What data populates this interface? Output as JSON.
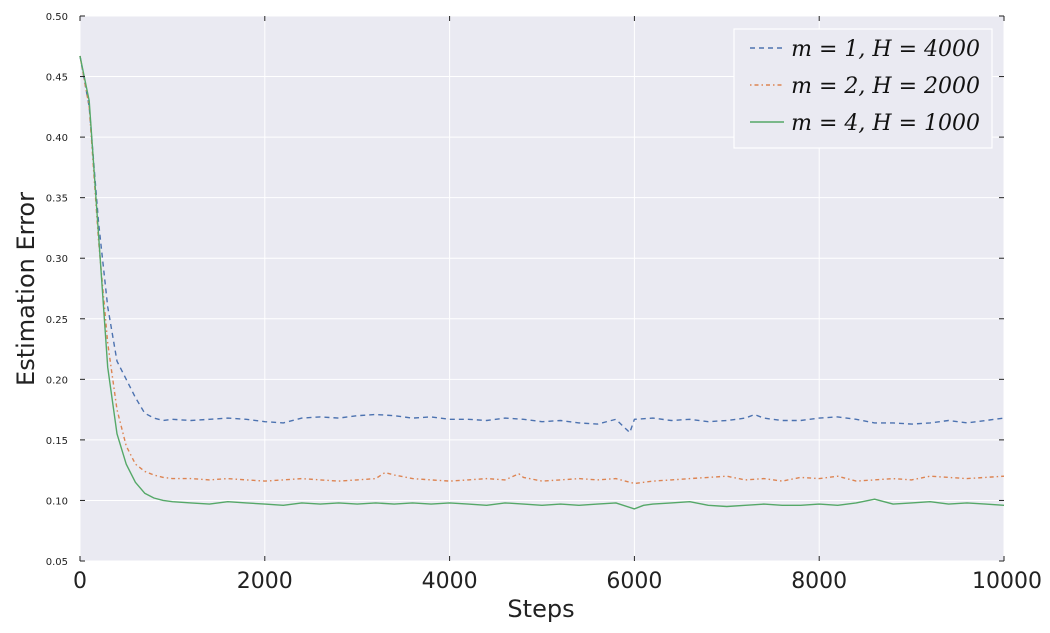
{
  "chart_data": {
    "type": "line",
    "xlabel": "Steps",
    "ylabel": "Estimation Error",
    "xlim": [
      0,
      10000
    ],
    "ylim": [
      0.05,
      0.5
    ],
    "x_ticks": [
      0,
      2000,
      4000,
      6000,
      8000,
      10000
    ],
    "x_tick_labels": [
      "0",
      "2000",
      "4000",
      "6000",
      "8000",
      "10000"
    ],
    "y_ticks": [
      0.05,
      0.1,
      0.15,
      0.2,
      0.25,
      0.3,
      0.35,
      0.4,
      0.45,
      0.5
    ],
    "y_tick_labels": [
      "0.05",
      "0.10",
      "0.15",
      "0.20",
      "0.25",
      "0.30",
      "0.35",
      "0.40",
      "0.45",
      "0.50"
    ],
    "grid": true,
    "legend_position": "top-right",
    "series": [
      {
        "name": "m = 1, H = 4000",
        "color": "#4c72b0",
        "style": "dashed",
        "x": [
          0,
          100,
          200,
          300,
          400,
          500,
          600,
          700,
          800,
          900,
          1000,
          1200,
          1400,
          1600,
          1800,
          2000,
          2200,
          2400,
          2600,
          2800,
          3000,
          3200,
          3400,
          3600,
          3800,
          4000,
          4200,
          4400,
          4600,
          4800,
          5000,
          5200,
          5400,
          5600,
          5800,
          5950,
          6000,
          6200,
          6400,
          6600,
          6800,
          7000,
          7200,
          7300,
          7400,
          7600,
          7800,
          8000,
          8200,
          8400,
          8600,
          8800,
          9000,
          9200,
          9400,
          9600,
          9800,
          10000
        ],
        "y": [
          0.467,
          0.425,
          0.33,
          0.26,
          0.215,
          0.2,
          0.185,
          0.172,
          0.168,
          0.166,
          0.167,
          0.166,
          0.167,
          0.168,
          0.167,
          0.165,
          0.164,
          0.168,
          0.169,
          0.168,
          0.17,
          0.171,
          0.17,
          0.168,
          0.169,
          0.167,
          0.167,
          0.166,
          0.168,
          0.167,
          0.165,
          0.166,
          0.164,
          0.163,
          0.167,
          0.156,
          0.167,
          0.168,
          0.166,
          0.167,
          0.165,
          0.166,
          0.168,
          0.171,
          0.168,
          0.166,
          0.166,
          0.168,
          0.169,
          0.167,
          0.164,
          0.164,
          0.163,
          0.164,
          0.166,
          0.164,
          0.166,
          0.168
        ]
      },
      {
        "name": "m = 2, H = 2000",
        "color": "#dd8452",
        "style": "dashdot",
        "x": [
          0,
          100,
          200,
          300,
          400,
          500,
          600,
          700,
          800,
          900,
          1000,
          1200,
          1400,
          1600,
          1800,
          2000,
          2200,
          2400,
          2600,
          2800,
          3000,
          3200,
          3300,
          3400,
          3600,
          3800,
          4000,
          4200,
          4400,
          4600,
          4750,
          4800,
          5000,
          5200,
          5400,
          5600,
          5800,
          6000,
          6200,
          6400,
          6600,
          6800,
          7000,
          7200,
          7400,
          7600,
          7800,
          8000,
          8200,
          8400,
          8600,
          8800,
          9000,
          9200,
          9400,
          9600,
          9800,
          10000
        ],
        "y": [
          0.467,
          0.425,
          0.315,
          0.23,
          0.175,
          0.145,
          0.13,
          0.124,
          0.121,
          0.119,
          0.118,
          0.118,
          0.117,
          0.118,
          0.117,
          0.116,
          0.117,
          0.118,
          0.117,
          0.116,
          0.117,
          0.118,
          0.123,
          0.121,
          0.118,
          0.117,
          0.116,
          0.117,
          0.118,
          0.117,
          0.122,
          0.119,
          0.116,
          0.117,
          0.118,
          0.117,
          0.118,
          0.114,
          0.116,
          0.117,
          0.118,
          0.119,
          0.12,
          0.117,
          0.118,
          0.116,
          0.119,
          0.118,
          0.12,
          0.116,
          0.117,
          0.118,
          0.117,
          0.12,
          0.119,
          0.118,
          0.119,
          0.12
        ]
      },
      {
        "name": "m = 4, H = 1000",
        "color": "#55a868",
        "style": "solid",
        "x": [
          0,
          100,
          200,
          300,
          400,
          500,
          600,
          700,
          800,
          900,
          1000,
          1200,
          1400,
          1600,
          1800,
          2000,
          2200,
          2400,
          2600,
          2800,
          3000,
          3200,
          3400,
          3600,
          3800,
          4000,
          4200,
          4400,
          4600,
          4800,
          5000,
          5200,
          5400,
          5600,
          5800,
          6000,
          6100,
          6200,
          6400,
          6600,
          6800,
          7000,
          7200,
          7400,
          7600,
          7800,
          8000,
          8200,
          8400,
          8600,
          8800,
          9000,
          9200,
          9400,
          9600,
          9800,
          10000
        ],
        "y": [
          0.467,
          0.43,
          0.32,
          0.21,
          0.155,
          0.13,
          0.115,
          0.106,
          0.102,
          0.1,
          0.099,
          0.098,
          0.097,
          0.099,
          0.098,
          0.097,
          0.096,
          0.098,
          0.097,
          0.098,
          0.097,
          0.098,
          0.097,
          0.098,
          0.097,
          0.098,
          0.097,
          0.096,
          0.098,
          0.097,
          0.096,
          0.097,
          0.096,
          0.097,
          0.098,
          0.093,
          0.096,
          0.097,
          0.098,
          0.099,
          0.096,
          0.095,
          0.096,
          0.097,
          0.096,
          0.096,
          0.097,
          0.096,
          0.098,
          0.101,
          0.097,
          0.098,
          0.099,
          0.097,
          0.098,
          0.097,
          0.096
        ]
      }
    ]
  }
}
